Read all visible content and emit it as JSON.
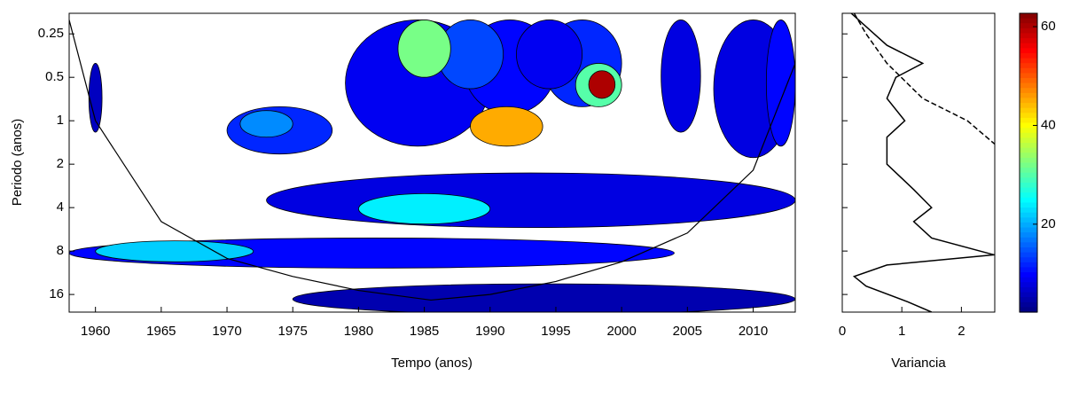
{
  "chart_data": [
    {
      "type": "contour",
      "xlabel": "Tempo (anos)",
      "ylabel": "Periodo (anos)",
      "xlim": [
        1958,
        2013.2
      ],
      "xticks": [
        1960,
        1965,
        1970,
        1975,
        1980,
        1985,
        1990,
        1995,
        2000,
        2005,
        2010
      ],
      "ylim": [
        0.18,
        21.2
      ],
      "yticks": [
        0.25,
        0.5,
        1,
        2,
        4,
        8,
        16
      ],
      "log_y": true,
      "y_inverted": true,
      "colormap": "jet",
      "clim": [
        2.2,
        62.7
      ],
      "regions": {
        "x0": [
          1958,
          1973,
          1975,
          1959.5,
          1970,
          1979,
          1988,
          1986,
          1994,
          1992,
          2003,
          2007,
          2011,
          1960,
          1980,
          1988.5,
          1996.5,
          1983,
          1997.5,
          1971
        ],
        "x1": [
          2004,
          2013.2,
          2013.2,
          1960.5,
          1978,
          1990,
          1995,
          1991,
          2000,
          1997,
          2006,
          2013,
          2013.2,
          1972,
          1990,
          1994,
          2000,
          1987,
          1999.5,
          1975
        ],
        "p0": [
          6.5,
          2.3,
          13.5,
          0.4,
          0.8,
          0.2,
          0.2,
          0.2,
          0.2,
          0.2,
          0.2,
          0.2,
          0.2,
          6.8,
          3.2,
          0.8,
          0.4,
          0.2,
          0.45,
          0.85
        ],
        "p1": [
          10.5,
          5.5,
          22,
          1.2,
          1.7,
          1.5,
          0.9,
          0.6,
          0.8,
          0.6,
          1.2,
          1.8,
          1.5,
          9.5,
          5.2,
          1.5,
          0.8,
          0.5,
          0.7,
          1.3
        ],
        "power": [
          10,
          8,
          5,
          6,
          12,
          9,
          10,
          14,
          12,
          9,
          8,
          8,
          10,
          22,
          24,
          45,
          30,
          32,
          60,
          18
        ]
      },
      "coi": {
        "x": [
          1958,
          1960,
          1965,
          1970,
          1975,
          1980,
          1985.5,
          1990,
          1995,
          2000,
          2005,
          2010,
          2013.2
        ],
        "y": [
          0.2,
          1,
          5,
          9,
          12,
          15,
          17.5,
          16,
          13,
          9.5,
          6,
          2.2,
          0.4
        ]
      }
    },
    {
      "type": "line",
      "xlabel": "Variancia",
      "xlim": [
        0,
        2.56
      ],
      "xticks": [
        0,
        1,
        2
      ],
      "ylim": [
        0.18,
        21.2
      ],
      "log_y": true,
      "y_inverted": true,
      "series": [
        {
          "color": "#000000",
          "dash": false,
          "period": [
            0.18,
            0.3,
            0.4,
            0.5,
            0.7,
            1,
            1.3,
            2,
            3,
            4,
            5,
            6.5,
            8.5,
            10,
            12,
            14,
            18,
            21.2
          ],
          "values": [
            0.15,
            0.75,
            1.35,
            0.9,
            0.75,
            1.05,
            0.75,
            0.75,
            1.2,
            1.5,
            1.2,
            1.5,
            2.55,
            0.75,
            0.2,
            0.4,
            1.1,
            1.5
          ]
        },
        {
          "color": "#000000",
          "dash": true,
          "period": [
            0.18,
            0.25,
            0.4,
            0.7,
            1,
            1.5
          ],
          "values": [
            0.2,
            0.4,
            0.75,
            1.35,
            2.1,
            2.6
          ]
        }
      ]
    },
    {
      "type": "colorbar",
      "colormap": "jet",
      "clim": [
        2.2,
        62.7
      ],
      "cticks": [
        20,
        40,
        60
      ]
    }
  ]
}
